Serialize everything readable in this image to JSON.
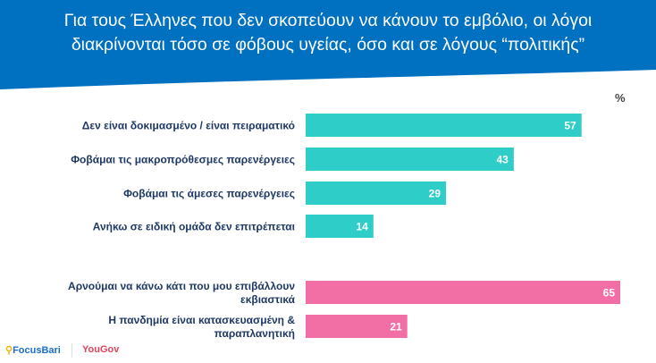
{
  "title_line1": "Για τους Έλληνες που δεν σκοπεύουν να κάνουν το εμβόλιο, οι λόγοι",
  "title_line2": "διακρίνονται τόσο σε φόβους υγείας, όσο και σε λόγους “πολιτικής”",
  "unit_label": "%",
  "footer": {
    "logo1": "FocusBari",
    "logo2": "YouGov"
  },
  "colors": {
    "header": "#0070C0",
    "health": "#2ECDC8",
    "politics": "#F26FA6"
  },
  "chart_data": {
    "type": "bar",
    "orientation": "horizontal",
    "title": "Για τους Έλληνες που δεν σκοπεύουν να κάνουν το εμβόλιο, οι λόγοι διακρίνονται τόσο σε φόβους υγείας, όσο και σε λόγους “πολιτικής”",
    "unit": "%",
    "xlim": [
      0,
      65
    ],
    "groups": [
      {
        "name": "health",
        "categories": [
          [
            "Δεν είναι δοκιμασμένο / είναι πειραματικό"
          ],
          [
            "Φοβάμαι τις μακροπρόθεσμες παρενέργειες"
          ],
          [
            "Φοβάμαι τις άμεσες παρενέργειες"
          ],
          [
            "Ανήκω σε ειδική ομάδα δεν επιτρέπεται"
          ]
        ],
        "values": [
          57,
          43,
          29,
          14
        ]
      },
      {
        "name": "politics",
        "categories": [
          [
            "Αρνούμαι να κάνω κάτι που μου επιβάλλουν",
            "εκβιαστικά"
          ],
          [
            "Η πανδημία είναι κατασκευασμένη &",
            "παραπλανητική"
          ]
        ],
        "values": [
          65,
          21
        ]
      }
    ]
  }
}
